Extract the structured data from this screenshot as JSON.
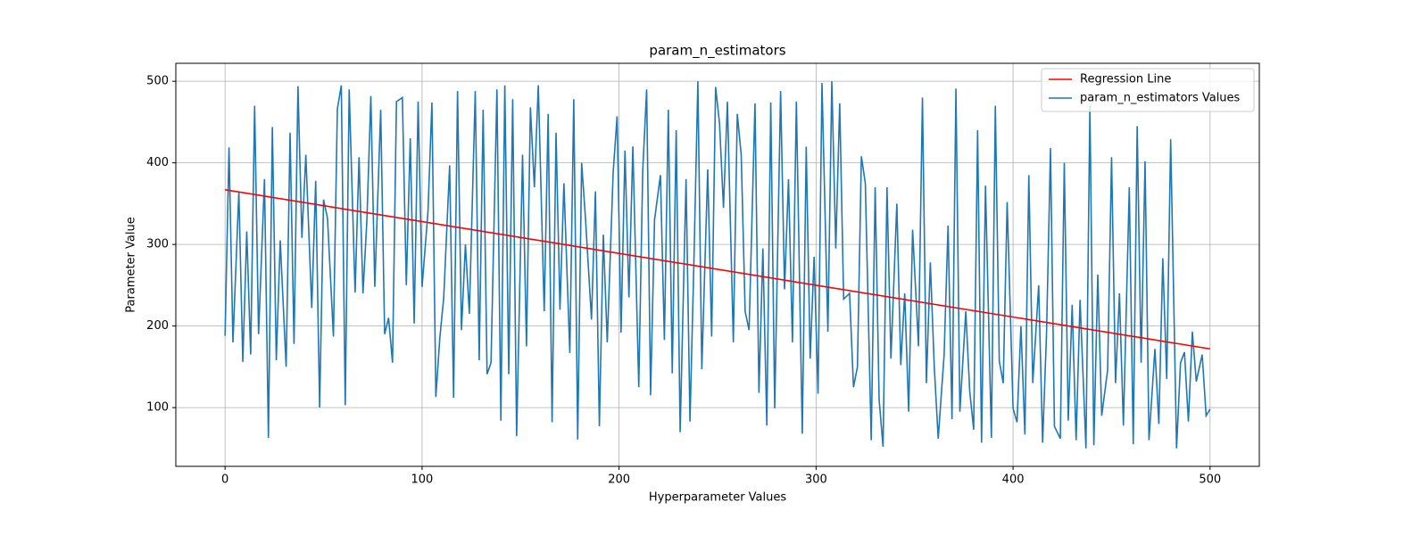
{
  "chart_data": {
    "type": "line",
    "title": "param_n_estimators",
    "x_label": "Hyperparameter Values",
    "y_label": "Parameter Value",
    "xlim": [
      -25,
      525
    ],
    "ylim": [
      28,
      522
    ],
    "xticks": [
      0,
      100,
      200,
      300,
      400,
      500
    ],
    "yticks": [
      100,
      200,
      300,
      400,
      500
    ],
    "grid": true,
    "legend": "upper right",
    "series": [
      {
        "name": "Regression Line",
        "color": "#ff0000",
        "x": [
          0,
          500
        ],
        "values": [
          367,
          172
        ]
      },
      {
        "name": "param_n_estimators Values",
        "color": "#1f77b4",
        "x": [
          0,
          2,
          4,
          7,
          9,
          11,
          13,
          15,
          17,
          20,
          22,
          24,
          26,
          28,
          31,
          33,
          35,
          37,
          39,
          41,
          44,
          46,
          48,
          50,
          52,
          55,
          57,
          59,
          61,
          63,
          66,
          68,
          70,
          72,
          74,
          76,
          79,
          81,
          83,
          85,
          87,
          90,
          92,
          94,
          96,
          98,
          100,
          103,
          105,
          107,
          109,
          111,
          114,
          116,
          118,
          120,
          122,
          124,
          127,
          129,
          131,
          133,
          135,
          138,
          140,
          142,
          144,
          146,
          148,
          151,
          153,
          155,
          157,
          159,
          162,
          164,
          166,
          168,
          170,
          172,
          175,
          177,
          179,
          181,
          183,
          186,
          188,
          190,
          192,
          194,
          197,
          199,
          201,
          203,
          205,
          207,
          210,
          212,
          214,
          216,
          218,
          221,
          223,
          225,
          227,
          229,
          231,
          234,
          236,
          238,
          240,
          242,
          245,
          247,
          249,
          251,
          253,
          255,
          258,
          260,
          262,
          264,
          266,
          269,
          271,
          273,
          275,
          277,
          279,
          282,
          284,
          286,
          288,
          290,
          293,
          295,
          297,
          299,
          301,
          303,
          306,
          308,
          310,
          312,
          314,
          317,
          319,
          321,
          323,
          325,
          328,
          330,
          332,
          334,
          336,
          338,
          341,
          343,
          345,
          347,
          349,
          352,
          354,
          356,
          358,
          360,
          362,
          365,
          367,
          369,
          371,
          373,
          376,
          378,
          380,
          382,
          384,
          386,
          389,
          391,
          393,
          395,
          397,
          400,
          402,
          404,
          406,
          408,
          410,
          413,
          415,
          417,
          419,
          421,
          424,
          426,
          428,
          430,
          432,
          434,
          437,
          439,
          441,
          443,
          445,
          448,
          450,
          452,
          454,
          456,
          459,
          461,
          463,
          465,
          467,
          469,
          472,
          474,
          476,
          478,
          480,
          483,
          485,
          487,
          489,
          491,
          493,
          496,
          498,
          500
        ],
        "values": [
          188,
          419,
          180,
          365,
          156,
          316,
          165,
          470,
          190,
          380,
          63,
          444,
          158,
          305,
          150,
          437,
          178,
          494,
          308,
          410,
          222,
          378,
          100,
          355,
          332,
          187,
          466,
          495,
          103,
          490,
          241,
          407,
          240,
          330,
          482,
          248,
          465,
          190,
          210,
          155,
          475,
          480,
          250,
          430,
          203,
          475,
          248,
          340,
          474,
          113,
          185,
          235,
          397,
          112,
          488,
          195,
          300,
          215,
          488,
          158,
          465,
          141,
          155,
          490,
          84,
          495,
          141,
          478,
          65,
          410,
          175,
          468,
          370,
          495,
          218,
          460,
          82,
          437,
          220,
          375,
          167,
          478,
          61,
          400,
          330,
          208,
          365,
          77,
          312,
          180,
          388,
          457,
          192,
          415,
          235,
          420,
          125,
          390,
          490,
          115,
          330,
          385,
          183,
          465,
          142,
          440,
          70,
          380,
          83,
          280,
          500,
          147,
          392,
          187,
          493,
          448,
          345,
          475,
          180,
          460,
          410,
          218,
          195,
          473,
          118,
          295,
          78,
          474,
          99,
          488,
          245,
          380,
          180,
          475,
          68,
          420,
          160,
          285,
          117,
          498,
          193,
          500,
          295,
          473,
          233,
          240,
          125,
          150,
          408,
          375,
          60,
          370,
          110,
          52,
          370,
          160,
          350,
          152,
          240,
          95,
          318,
          175,
          480,
          130,
          278,
          150,
          62,
          165,
          323,
          86,
          491,
          95,
          218,
          120,
          73,
          440,
          57,
          372,
          63,
          470,
          157,
          130,
          352,
          99,
          82,
          200,
          67,
          385,
          130,
          250,
          57,
          192,
          418,
          77,
          62,
          400,
          84,
          226,
          60,
          232,
          50,
          470,
          54,
          263,
          90,
          146,
          407,
          130,
          240,
          78,
          370,
          55,
          445,
          155,
          402,
          60,
          172,
          80,
          283,
          135,
          429,
          50,
          155,
          168,
          83,
          193,
          132,
          165,
          90,
          98
        ]
      }
    ]
  }
}
